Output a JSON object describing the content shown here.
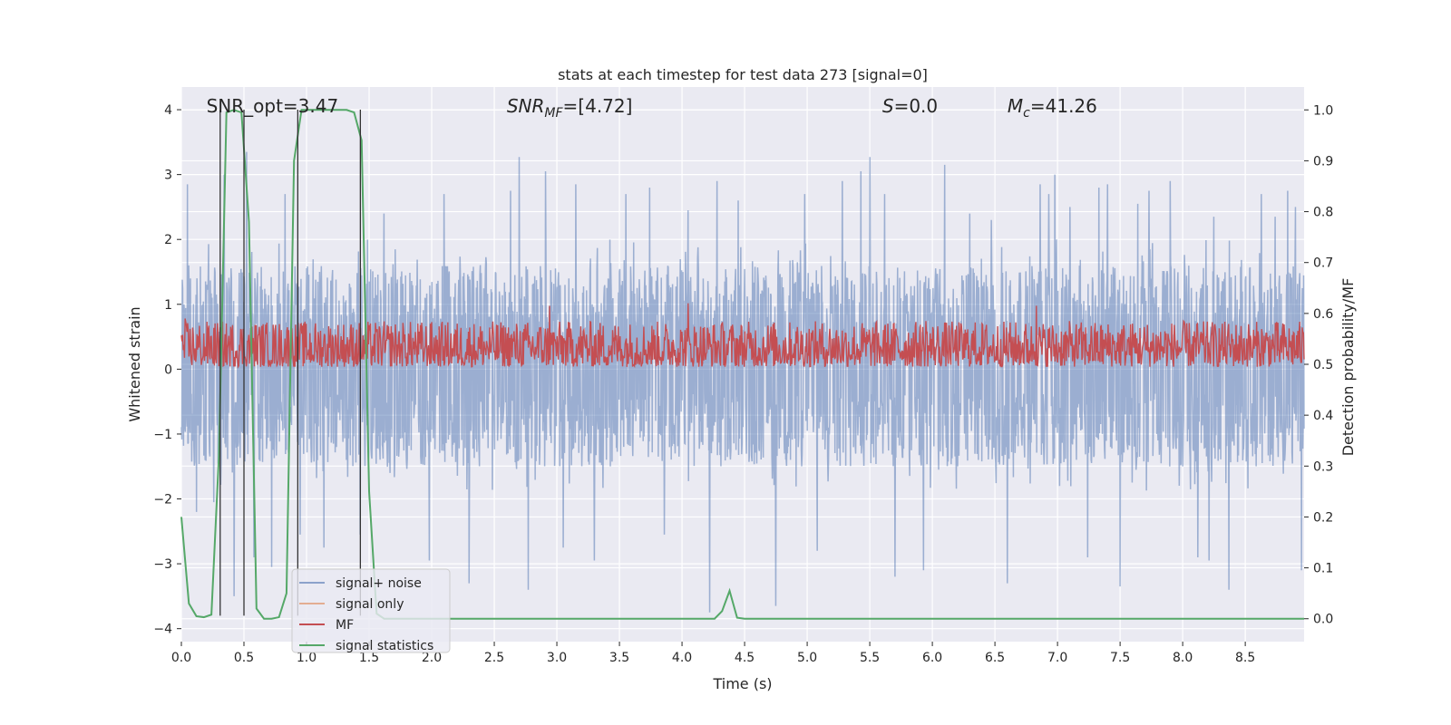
{
  "chart_data": {
    "type": "line",
    "title": "stats at each timestep for test data 273 [signal=0]",
    "xlabel": "Time (s)",
    "ylabel": "Whitened strain",
    "y2label": "Detection probability/MF",
    "xlim": [
      0.0,
      8.97
    ],
    "ylim": [
      -4.2,
      4.35
    ],
    "y2lim": [
      -0.045,
      1.045
    ],
    "x_ticks": [
      0.0,
      0.5,
      1.0,
      1.5,
      2.0,
      2.5,
      3.0,
      3.5,
      4.0,
      4.5,
      5.0,
      5.5,
      6.0,
      6.5,
      7.0,
      7.5,
      8.0,
      8.5
    ],
    "y_ticks": [
      -4,
      -3,
      -2,
      -1,
      0,
      1,
      2,
      3,
      4
    ],
    "y2_ticks": [
      0.0,
      0.1,
      0.2,
      0.3,
      0.4,
      0.5,
      0.6,
      0.7,
      0.8,
      0.9,
      1.0
    ],
    "grid": true,
    "legend_position": "lower-left",
    "colors": {
      "background": "#eaeaf2",
      "grid": "#ffffff",
      "noise": "#4c72b0",
      "signal_only": "#dd8452",
      "mf": "#c44e52",
      "stats": "#55a868",
      "vline": "#333333"
    },
    "series": [
      {
        "name": "signal+ noise",
        "axis": "left",
        "envelope": {
          "upper_typical": 1.6,
          "lower_typical": -1.5
        },
        "peaks": [
          [
            0.05,
            2.85
          ],
          [
            0.12,
            -2.2
          ],
          [
            0.26,
            -2.05
          ],
          [
            0.34,
            3.0
          ],
          [
            0.42,
            -3.5
          ],
          [
            0.52,
            3.35
          ],
          [
            0.58,
            -2.9
          ],
          [
            0.72,
            -3.05
          ],
          [
            0.83,
            2.7
          ],
          [
            0.95,
            -2.55
          ],
          [
            1.14,
            -2.75
          ],
          [
            1.43,
            -2.55
          ],
          [
            1.62,
            2.4
          ],
          [
            1.98,
            -2.95
          ],
          [
            2.1,
            2.7
          ],
          [
            2.3,
            -3.3
          ],
          [
            2.63,
            2.75
          ],
          [
            2.7,
            3.27
          ],
          [
            2.77,
            -3.4
          ],
          [
            2.91,
            3.05
          ],
          [
            3.05,
            -2.75
          ],
          [
            3.15,
            2.85
          ],
          [
            3.3,
            -2.95
          ],
          [
            3.55,
            2.7
          ],
          [
            3.74,
            2.8
          ],
          [
            3.86,
            -2.55
          ],
          [
            4.05,
            2.45
          ],
          [
            4.22,
            -3.75
          ],
          [
            4.28,
            2.9
          ],
          [
            4.45,
            2.6
          ],
          [
            4.75,
            -3.65
          ],
          [
            4.98,
            2.7
          ],
          [
            5.08,
            -2.8
          ],
          [
            5.28,
            2.9
          ],
          [
            5.43,
            3.05
          ],
          [
            5.5,
            3.27
          ],
          [
            5.62,
            2.7
          ],
          [
            5.7,
            -3.2
          ],
          [
            5.93,
            -3.1
          ],
          [
            6.1,
            3.15
          ],
          [
            6.3,
            2.4
          ],
          [
            6.47,
            2.3
          ],
          [
            6.6,
            -3.3
          ],
          [
            6.86,
            2.85
          ],
          [
            6.93,
            2.7
          ],
          [
            6.98,
            3.0
          ],
          [
            7.1,
            2.5
          ],
          [
            7.24,
            -2.9
          ],
          [
            7.33,
            2.8
          ],
          [
            7.4,
            2.85
          ],
          [
            7.5,
            -3.35
          ],
          [
            7.64,
            2.55
          ],
          [
            7.73,
            2.75
          ],
          [
            7.9,
            2.9
          ],
          [
            8.12,
            -2.9
          ],
          [
            8.21,
            -2.95
          ],
          [
            8.25,
            2.35
          ],
          [
            8.37,
            -3.4
          ],
          [
            8.63,
            2.7
          ],
          [
            8.74,
            2.35
          ],
          [
            8.84,
            2.75
          ],
          [
            8.9,
            2.5
          ],
          [
            8.95,
            -3.1
          ]
        ]
      },
      {
        "name": "signal only",
        "axis": "left",
        "values": []
      },
      {
        "name": "MF",
        "axis": "right",
        "baseline": 0.52,
        "typical_range": [
          0.495,
          0.585
        ],
        "peaks": [
          [
            0.03,
            0.59
          ],
          [
            2.94,
            0.615
          ],
          [
            4.05,
            0.62
          ],
          [
            6.83,
            0.615
          ],
          [
            5.95,
            0.585
          ]
        ]
      },
      {
        "name": "signal statistics",
        "axis": "right",
        "x": [
          0.0,
          0.06,
          0.12,
          0.18,
          0.24,
          0.3,
          0.36,
          0.42,
          0.48,
          0.54,
          0.6,
          0.66,
          0.72,
          0.78,
          0.84,
          0.9,
          0.96,
          1.02,
          1.08,
          1.14,
          1.2,
          1.26,
          1.32,
          1.38,
          1.44,
          1.5,
          1.56,
          1.62,
          1.68,
          1.74,
          1.8,
          4.14,
          4.2,
          4.26,
          4.32,
          4.38,
          4.44,
          4.5,
          8.97
        ],
        "values": [
          0.2,
          0.03,
          0.005,
          0.003,
          0.008,
          0.32,
          0.995,
          1.0,
          0.995,
          0.78,
          0.02,
          0.0,
          0.0,
          0.003,
          0.05,
          0.9,
          1.0,
          1.0,
          1.0,
          1.0,
          1.0,
          1.0,
          1.0,
          0.995,
          0.94,
          0.25,
          0.01,
          0.0,
          0.0,
          0.0,
          0.0,
          0.0,
          0.0,
          0.0,
          0.015,
          0.055,
          0.002,
          0.0,
          0.0
        ]
      }
    ],
    "vlines": [
      0.31,
      0.5,
      0.93,
      1.43
    ],
    "annotations": [
      {
        "text": "SNR_opt=3.47",
        "x": 0.2
      },
      {
        "main": "SNR",
        "sub": "MF",
        "suffix": "=[4.72]",
        "x": 2.6
      },
      {
        "main": "S",
        "sub": "",
        "suffix": "=0.0",
        "x": 5.6
      },
      {
        "main": "M",
        "sub": "c",
        "suffix": "=41.26",
        "x": 6.6
      }
    ]
  }
}
